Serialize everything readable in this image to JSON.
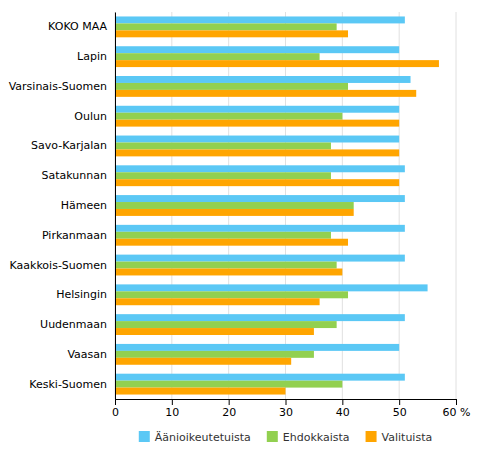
{
  "chart_data": {
    "type": "bar",
    "orientation": "horizontal",
    "categories": [
      "KOKO MAA",
      "Lapin",
      "Varsinais-Suomen",
      "Oulun",
      "Savo-Karjalan",
      "Satakunnan",
      "Hämeen",
      "Pirkanmaan",
      "Kaakkois-Suomen",
      "Helsingin",
      "Uudenmaan",
      "Vaasan",
      "Keski-Suomen"
    ],
    "series": [
      {
        "name": "Äänioikeutetuista",
        "color": "#5BC8F5",
        "values": [
          51,
          50,
          52,
          50,
          50,
          51,
          51,
          51,
          51,
          55,
          51,
          50,
          51
        ]
      },
      {
        "name": "Ehdokkaista",
        "color": "#92D050",
        "values": [
          39,
          36,
          41,
          40,
          38,
          38,
          42,
          38,
          39,
          41,
          39,
          35,
          40
        ]
      },
      {
        "name": "Valituista",
        "color": "#FFA500",
        "values": [
          41,
          57,
          53,
          50,
          50,
          50,
          42,
          41,
          40,
          36,
          35,
          31,
          30
        ]
      }
    ],
    "xlim": [
      0,
      60
    ],
    "xticks": [
      0,
      10,
      20,
      30,
      40,
      50,
      {
        "value": 60,
        "label": "60 %"
      }
    ],
    "grid": true,
    "legend": "bottom"
  }
}
